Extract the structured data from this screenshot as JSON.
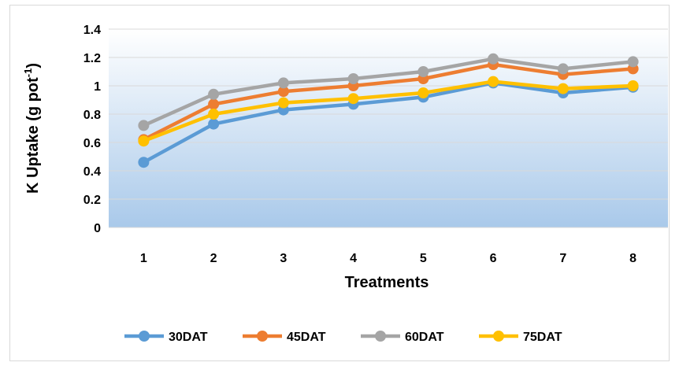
{
  "chart_data": {
    "type": "line",
    "categories": [
      "1",
      "2",
      "3",
      "4",
      "5",
      "6",
      "7",
      "8"
    ],
    "series": [
      {
        "name": "30DAT",
        "color": "#5b9bd5",
        "values": [
          0.46,
          0.73,
          0.83,
          0.87,
          0.92,
          1.02,
          0.95,
          0.99
        ]
      },
      {
        "name": "45DAT",
        "color": "#ed7d31",
        "values": [
          0.62,
          0.87,
          0.96,
          1.0,
          1.05,
          1.15,
          1.08,
          1.12
        ]
      },
      {
        "name": "60DAT",
        "color": "#a5a5a5",
        "values": [
          0.72,
          0.94,
          1.02,
          1.05,
          1.1,
          1.19,
          1.12,
          1.17
        ]
      },
      {
        "name": "75DAT",
        "color": "#ffc000",
        "values": [
          0.61,
          0.8,
          0.88,
          0.91,
          0.95,
          1.03,
          0.98,
          1.0
        ]
      }
    ],
    "xlabel": "Treatments",
    "ylabel_main": "K Uptake (g pot",
    "ylabel_sup": "-1",
    "ylabel_close": ")",
    "ylim": [
      0,
      1.4
    ],
    "yticks": [
      "0",
      "0.2",
      "0.4",
      "0.6",
      "0.8",
      "1",
      "1.2",
      "1.4"
    ],
    "grid": true,
    "legend_position": "bottom"
  }
}
